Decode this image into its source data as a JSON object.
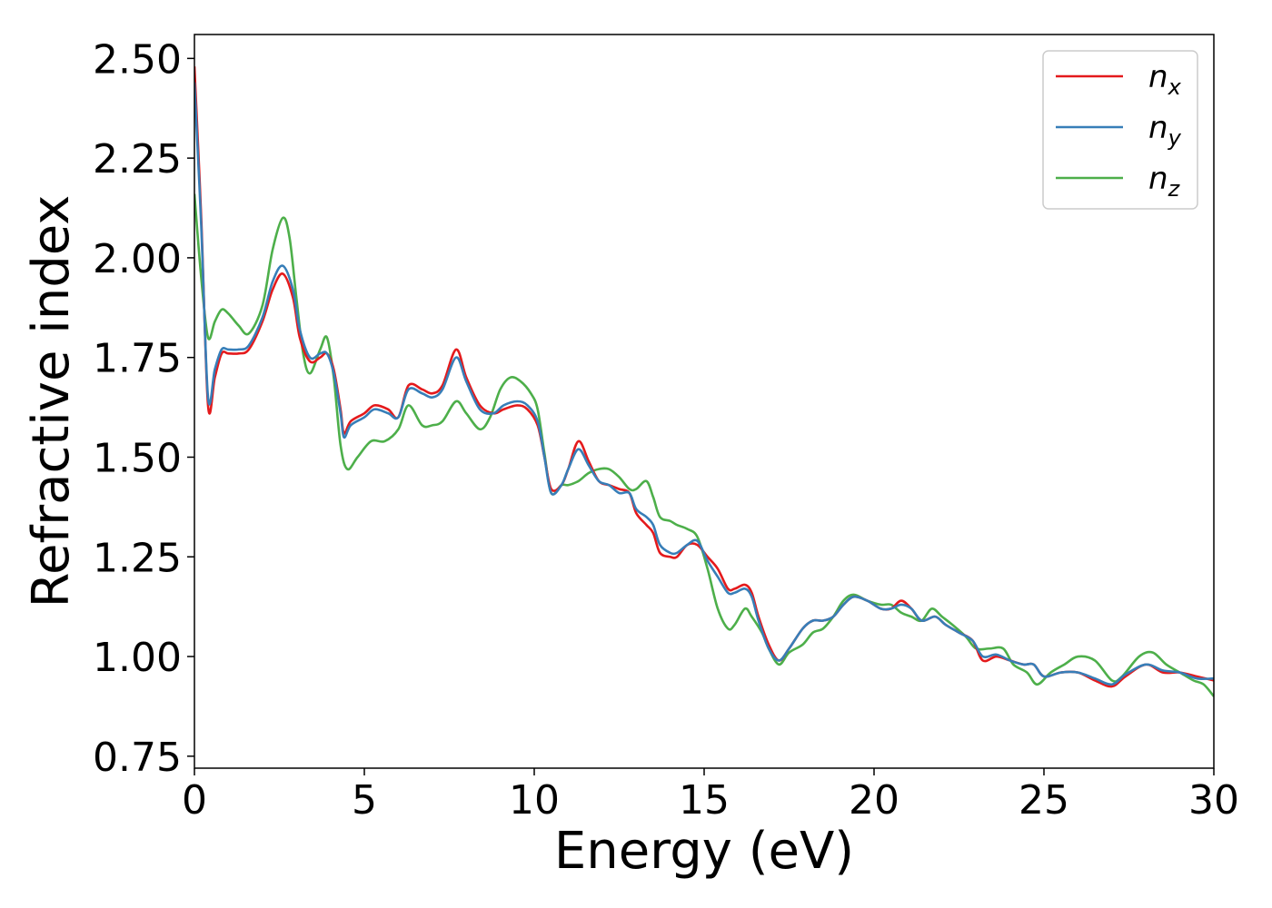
{
  "chart_data": {
    "type": "line",
    "xlabel": "Energy (eV)",
    "ylabel": "Refractive index",
    "xlim": [
      0,
      30
    ],
    "ylim": [
      0.72,
      2.56
    ],
    "xticks": [
      "0",
      "5",
      "10",
      "15",
      "20",
      "25",
      "30"
    ],
    "yticks": [
      "0.75",
      "1.00",
      "1.25",
      "1.50",
      "1.75",
      "2.00",
      "2.25",
      "2.50"
    ],
    "grid": false,
    "legend_position": "top-right",
    "series": [
      {
        "name": "n_x",
        "base": "n",
        "sub": "x",
        "color": "#e41a1c",
        "points": [
          [
            0,
            2.48
          ],
          [
            0.2,
            2.1
          ],
          [
            0.4,
            1.63
          ],
          [
            0.6,
            1.7
          ],
          [
            0.8,
            1.76
          ],
          [
            1.0,
            1.76
          ],
          [
            1.3,
            1.76
          ],
          [
            1.6,
            1.77
          ],
          [
            2.0,
            1.84
          ],
          [
            2.3,
            1.92
          ],
          [
            2.6,
            1.96
          ],
          [
            2.9,
            1.9
          ],
          [
            3.1,
            1.8
          ],
          [
            3.4,
            1.74
          ],
          [
            3.7,
            1.75
          ],
          [
            3.9,
            1.76
          ],
          [
            4.1,
            1.72
          ],
          [
            4.3,
            1.62
          ],
          [
            4.4,
            1.56
          ],
          [
            4.6,
            1.59
          ],
          [
            5.0,
            1.61
          ],
          [
            5.3,
            1.63
          ],
          [
            5.7,
            1.62
          ],
          [
            6.0,
            1.6
          ],
          [
            6.3,
            1.68
          ],
          [
            6.7,
            1.67
          ],
          [
            7.0,
            1.66
          ],
          [
            7.3,
            1.68
          ],
          [
            7.7,
            1.77
          ],
          [
            8.0,
            1.7
          ],
          [
            8.4,
            1.63
          ],
          [
            8.8,
            1.61
          ],
          [
            9.1,
            1.62
          ],
          [
            9.5,
            1.63
          ],
          [
            9.8,
            1.62
          ],
          [
            10.1,
            1.58
          ],
          [
            10.3,
            1.5
          ],
          [
            10.5,
            1.42
          ],
          [
            10.8,
            1.43
          ],
          [
            11.0,
            1.47
          ],
          [
            11.3,
            1.54
          ],
          [
            11.6,
            1.49
          ],
          [
            11.9,
            1.44
          ],
          [
            12.2,
            1.43
          ],
          [
            12.5,
            1.42
          ],
          [
            12.8,
            1.41
          ],
          [
            13.0,
            1.36
          ],
          [
            13.3,
            1.33
          ],
          [
            13.5,
            1.31
          ],
          [
            13.7,
            1.26
          ],
          [
            14.0,
            1.25
          ],
          [
            14.2,
            1.25
          ],
          [
            14.5,
            1.28
          ],
          [
            14.8,
            1.28
          ],
          [
            15.1,
            1.25
          ],
          [
            15.4,
            1.22
          ],
          [
            15.7,
            1.17
          ],
          [
            15.9,
            1.17
          ],
          [
            16.2,
            1.18
          ],
          [
            16.4,
            1.16
          ],
          [
            16.6,
            1.1
          ],
          [
            16.9,
            1.03
          ],
          [
            17.2,
            0.99
          ],
          [
            17.5,
            1.02
          ],
          [
            17.9,
            1.07
          ],
          [
            18.2,
            1.09
          ],
          [
            18.5,
            1.09
          ],
          [
            18.8,
            1.1
          ],
          [
            19.1,
            1.13
          ],
          [
            19.4,
            1.15
          ],
          [
            19.8,
            1.14
          ],
          [
            20.2,
            1.12
          ],
          [
            20.5,
            1.12
          ],
          [
            20.8,
            1.14
          ],
          [
            21.1,
            1.12
          ],
          [
            21.4,
            1.09
          ],
          [
            21.8,
            1.1
          ],
          [
            22.1,
            1.08
          ],
          [
            22.5,
            1.06
          ],
          [
            22.9,
            1.04
          ],
          [
            23.2,
            0.99
          ],
          [
            23.6,
            1.0
          ],
          [
            24.0,
            0.99
          ],
          [
            24.4,
            0.98
          ],
          [
            24.7,
            0.98
          ],
          [
            25.0,
            0.95
          ],
          [
            25.5,
            0.96
          ],
          [
            26.0,
            0.96
          ],
          [
            26.5,
            0.94
          ],
          [
            27.0,
            0.925
          ],
          [
            27.4,
            0.95
          ],
          [
            28.0,
            0.98
          ],
          [
            28.5,
            0.96
          ],
          [
            29.0,
            0.96
          ],
          [
            29.5,
            0.95
          ],
          [
            30.0,
            0.94
          ]
        ]
      },
      {
        "name": "n_y",
        "base": "n",
        "sub": "y",
        "color": "#377eb8",
        "points": [
          [
            0,
            2.44
          ],
          [
            0.2,
            2.08
          ],
          [
            0.4,
            1.65
          ],
          [
            0.6,
            1.72
          ],
          [
            0.8,
            1.77
          ],
          [
            1.0,
            1.77
          ],
          [
            1.3,
            1.77
          ],
          [
            1.6,
            1.78
          ],
          [
            2.0,
            1.85
          ],
          [
            2.3,
            1.94
          ],
          [
            2.6,
            1.98
          ],
          [
            2.9,
            1.92
          ],
          [
            3.1,
            1.82
          ],
          [
            3.4,
            1.75
          ],
          [
            3.7,
            1.76
          ],
          [
            3.9,
            1.76
          ],
          [
            4.1,
            1.71
          ],
          [
            4.3,
            1.61
          ],
          [
            4.4,
            1.55
          ],
          [
            4.6,
            1.58
          ],
          [
            5.0,
            1.6
          ],
          [
            5.3,
            1.62
          ],
          [
            5.7,
            1.61
          ],
          [
            6.0,
            1.6
          ],
          [
            6.3,
            1.67
          ],
          [
            6.7,
            1.66
          ],
          [
            7.0,
            1.65
          ],
          [
            7.3,
            1.67
          ],
          [
            7.7,
            1.75
          ],
          [
            8.0,
            1.69
          ],
          [
            8.4,
            1.62
          ],
          [
            8.8,
            1.61
          ],
          [
            9.1,
            1.63
          ],
          [
            9.5,
            1.64
          ],
          [
            9.8,
            1.63
          ],
          [
            10.1,
            1.59
          ],
          [
            10.3,
            1.5
          ],
          [
            10.5,
            1.41
          ],
          [
            10.8,
            1.43
          ],
          [
            11.0,
            1.47
          ],
          [
            11.3,
            1.52
          ],
          [
            11.6,
            1.48
          ],
          [
            11.9,
            1.44
          ],
          [
            12.2,
            1.43
          ],
          [
            12.5,
            1.41
          ],
          [
            12.8,
            1.41
          ],
          [
            13.0,
            1.37
          ],
          [
            13.3,
            1.35
          ],
          [
            13.5,
            1.33
          ],
          [
            13.7,
            1.28
          ],
          [
            14.0,
            1.26
          ],
          [
            14.2,
            1.26
          ],
          [
            14.5,
            1.28
          ],
          [
            14.8,
            1.29
          ],
          [
            15.1,
            1.24
          ],
          [
            15.4,
            1.2
          ],
          [
            15.7,
            1.16
          ],
          [
            15.9,
            1.16
          ],
          [
            16.2,
            1.17
          ],
          [
            16.4,
            1.15
          ],
          [
            16.6,
            1.09
          ],
          [
            16.9,
            1.02
          ],
          [
            17.2,
            0.99
          ],
          [
            17.5,
            1.02
          ],
          [
            17.9,
            1.07
          ],
          [
            18.2,
            1.09
          ],
          [
            18.5,
            1.09
          ],
          [
            18.8,
            1.1
          ],
          [
            19.1,
            1.13
          ],
          [
            19.4,
            1.15
          ],
          [
            19.8,
            1.14
          ],
          [
            20.2,
            1.12
          ],
          [
            20.5,
            1.12
          ],
          [
            20.8,
            1.13
          ],
          [
            21.1,
            1.12
          ],
          [
            21.4,
            1.09
          ],
          [
            21.8,
            1.1
          ],
          [
            22.1,
            1.08
          ],
          [
            22.5,
            1.06
          ],
          [
            22.9,
            1.04
          ],
          [
            23.2,
            1.0
          ],
          [
            23.6,
            1.005
          ],
          [
            24.0,
            0.99
          ],
          [
            24.4,
            0.98
          ],
          [
            24.7,
            0.98
          ],
          [
            25.0,
            0.95
          ],
          [
            25.5,
            0.96
          ],
          [
            26.0,
            0.96
          ],
          [
            26.5,
            0.945
          ],
          [
            27.0,
            0.93
          ],
          [
            27.4,
            0.955
          ],
          [
            28.0,
            0.98
          ],
          [
            28.5,
            0.965
          ],
          [
            29.0,
            0.96
          ],
          [
            29.5,
            0.945
          ],
          [
            30.0,
            0.945
          ]
        ]
      },
      {
        "name": "n_z",
        "base": "n",
        "sub": "z",
        "color": "#4daf4a",
        "points": [
          [
            0,
            2.16
          ],
          [
            0.2,
            1.95
          ],
          [
            0.4,
            1.8
          ],
          [
            0.6,
            1.84
          ],
          [
            0.8,
            1.87
          ],
          [
            1.0,
            1.86
          ],
          [
            1.3,
            1.83
          ],
          [
            1.6,
            1.81
          ],
          [
            2.0,
            1.88
          ],
          [
            2.3,
            2.02
          ],
          [
            2.6,
            2.1
          ],
          [
            2.8,
            2.05
          ],
          [
            3.0,
            1.9
          ],
          [
            3.2,
            1.76
          ],
          [
            3.4,
            1.71
          ],
          [
            3.7,
            1.77
          ],
          [
            3.9,
            1.8
          ],
          [
            4.1,
            1.7
          ],
          [
            4.3,
            1.53
          ],
          [
            4.5,
            1.47
          ],
          [
            4.8,
            1.5
          ],
          [
            5.2,
            1.54
          ],
          [
            5.6,
            1.54
          ],
          [
            6.0,
            1.57
          ],
          [
            6.3,
            1.63
          ],
          [
            6.7,
            1.58
          ],
          [
            7.0,
            1.58
          ],
          [
            7.3,
            1.59
          ],
          [
            7.7,
            1.64
          ],
          [
            8.0,
            1.61
          ],
          [
            8.4,
            1.57
          ],
          [
            8.7,
            1.6
          ],
          [
            9.0,
            1.67
          ],
          [
            9.3,
            1.7
          ],
          [
            9.6,
            1.69
          ],
          [
            9.9,
            1.66
          ],
          [
            10.1,
            1.62
          ],
          [
            10.3,
            1.51
          ],
          [
            10.5,
            1.41
          ],
          [
            10.8,
            1.43
          ],
          [
            11.0,
            1.43
          ],
          [
            11.3,
            1.44
          ],
          [
            11.6,
            1.46
          ],
          [
            11.9,
            1.47
          ],
          [
            12.2,
            1.47
          ],
          [
            12.5,
            1.45
          ],
          [
            12.8,
            1.42
          ],
          [
            13.0,
            1.42
          ],
          [
            13.3,
            1.44
          ],
          [
            13.5,
            1.4
          ],
          [
            13.7,
            1.35
          ],
          [
            14.0,
            1.34
          ],
          [
            14.2,
            1.33
          ],
          [
            14.5,
            1.32
          ],
          [
            14.8,
            1.3
          ],
          [
            15.1,
            1.22
          ],
          [
            15.4,
            1.12
          ],
          [
            15.7,
            1.07
          ],
          [
            15.9,
            1.08
          ],
          [
            16.2,
            1.12
          ],
          [
            16.4,
            1.1
          ],
          [
            16.7,
            1.06
          ],
          [
            16.9,
            1.02
          ],
          [
            17.2,
            0.98
          ],
          [
            17.5,
            1.01
          ],
          [
            17.9,
            1.03
          ],
          [
            18.2,
            1.06
          ],
          [
            18.5,
            1.07
          ],
          [
            18.8,
            1.1
          ],
          [
            19.1,
            1.14
          ],
          [
            19.4,
            1.155
          ],
          [
            19.8,
            1.14
          ],
          [
            20.2,
            1.13
          ],
          [
            20.5,
            1.13
          ],
          [
            20.8,
            1.11
          ],
          [
            21.1,
            1.1
          ],
          [
            21.4,
            1.09
          ],
          [
            21.7,
            1.12
          ],
          [
            22.0,
            1.1
          ],
          [
            22.3,
            1.08
          ],
          [
            22.7,
            1.05
          ],
          [
            23.0,
            1.02
          ],
          [
            23.4,
            1.02
          ],
          [
            23.8,
            1.02
          ],
          [
            24.1,
            0.98
          ],
          [
            24.5,
            0.96
          ],
          [
            24.8,
            0.93
          ],
          [
            25.2,
            0.96
          ],
          [
            25.6,
            0.98
          ],
          [
            26.0,
            1.0
          ],
          [
            26.5,
            0.99
          ],
          [
            27.0,
            0.94
          ],
          [
            27.3,
            0.95
          ],
          [
            27.8,
            1.0
          ],
          [
            28.2,
            1.01
          ],
          [
            28.6,
            0.98
          ],
          [
            29.0,
            0.96
          ],
          [
            29.4,
            0.94
          ],
          [
            29.7,
            0.93
          ],
          [
            30.0,
            0.9
          ]
        ]
      }
    ]
  }
}
